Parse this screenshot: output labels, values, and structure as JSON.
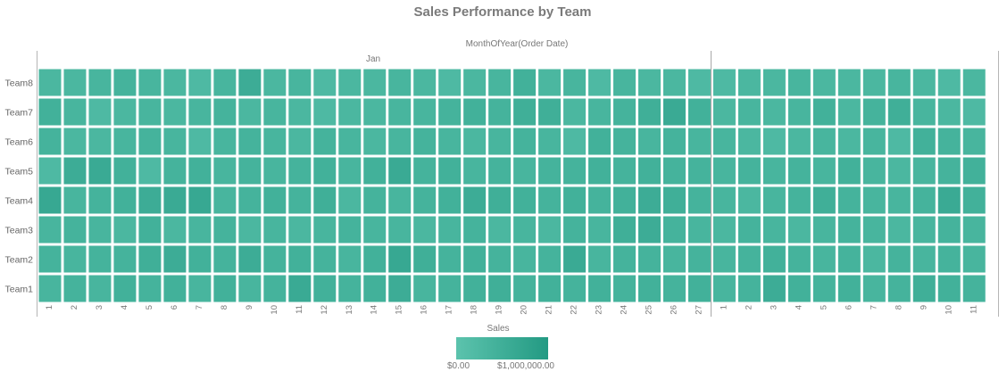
{
  "chart_data": {
    "type": "heatmap",
    "title": "Sales Performance by Team",
    "column_axis_label": "MonthOfYear(Order Date)",
    "month_header": "Jan",
    "columns": [
      {
        "month": "Jan",
        "day": "1"
      },
      {
        "month": "Jan",
        "day": "2"
      },
      {
        "month": "Jan",
        "day": "3"
      },
      {
        "month": "Jan",
        "day": "4"
      },
      {
        "month": "Jan",
        "day": "5"
      },
      {
        "month": "Jan",
        "day": "6"
      },
      {
        "month": "Jan",
        "day": "7"
      },
      {
        "month": "Jan",
        "day": "8"
      },
      {
        "month": "Jan",
        "day": "9"
      },
      {
        "month": "Jan",
        "day": "10"
      },
      {
        "month": "Jan",
        "day": "11"
      },
      {
        "month": "Jan",
        "day": "12"
      },
      {
        "month": "Jan",
        "day": "13"
      },
      {
        "month": "Jan",
        "day": "14"
      },
      {
        "month": "Jan",
        "day": "15"
      },
      {
        "month": "Jan",
        "day": "16"
      },
      {
        "month": "Jan",
        "day": "17"
      },
      {
        "month": "Jan",
        "day": "18"
      },
      {
        "month": "Jan",
        "day": "19"
      },
      {
        "month": "Jan",
        "day": "20"
      },
      {
        "month": "Jan",
        "day": "21"
      },
      {
        "month": "Jan",
        "day": "22"
      },
      {
        "month": "Jan",
        "day": "23"
      },
      {
        "month": "Jan",
        "day": "24"
      },
      {
        "month": "Jan",
        "day": "25"
      },
      {
        "month": "Jan",
        "day": "26"
      },
      {
        "month": "Jan",
        "day": "27"
      },
      {
        "month": "",
        "day": "1"
      },
      {
        "month": "",
        "day": "2"
      },
      {
        "month": "",
        "day": "3"
      },
      {
        "month": "",
        "day": "4"
      },
      {
        "month": "",
        "day": "5"
      },
      {
        "month": "",
        "day": "6"
      },
      {
        "month": "",
        "day": "7"
      },
      {
        "month": "",
        "day": "8"
      },
      {
        "month": "",
        "day": "9"
      },
      {
        "month": "",
        "day": "10"
      },
      {
        "month": "",
        "day": "11"
      }
    ],
    "rows": [
      "Team8",
      "Team7",
      "Team6",
      "Team5",
      "Team4",
      "Team3",
      "Team2",
      "Team1"
    ],
    "values": [
      [
        0.3,
        0.3,
        0.35,
        0.4,
        0.35,
        0.3,
        0.25,
        0.35,
        0.55,
        0.3,
        0.35,
        0.25,
        0.3,
        0.3,
        0.35,
        0.3,
        0.25,
        0.3,
        0.35,
        0.45,
        0.3,
        0.35,
        0.25,
        0.35,
        0.3,
        0.3,
        0.25,
        0.25,
        0.3,
        0.3,
        0.35,
        0.3,
        0.3,
        0.3,
        0.35,
        0.3,
        0.25,
        0.3
      ],
      [
        0.45,
        0.35,
        0.25,
        0.3,
        0.35,
        0.3,
        0.35,
        0.4,
        0.3,
        0.35,
        0.3,
        0.25,
        0.3,
        0.3,
        0.35,
        0.35,
        0.4,
        0.45,
        0.4,
        0.5,
        0.5,
        0.3,
        0.35,
        0.4,
        0.5,
        0.6,
        0.45,
        0.3,
        0.35,
        0.3,
        0.35,
        0.45,
        0.3,
        0.4,
        0.5,
        0.35,
        0.3,
        0.25
      ],
      [
        0.4,
        0.3,
        0.3,
        0.35,
        0.4,
        0.35,
        0.25,
        0.35,
        0.4,
        0.35,
        0.3,
        0.4,
        0.35,
        0.3,
        0.35,
        0.4,
        0.35,
        0.3,
        0.35,
        0.4,
        0.35,
        0.25,
        0.45,
        0.4,
        0.35,
        0.4,
        0.35,
        0.35,
        0.3,
        0.25,
        0.3,
        0.35,
        0.3,
        0.35,
        0.25,
        0.45,
        0.4,
        0.35
      ],
      [
        0.25,
        0.55,
        0.6,
        0.45,
        0.25,
        0.4,
        0.45,
        0.35,
        0.4,
        0.35,
        0.4,
        0.45,
        0.35,
        0.45,
        0.6,
        0.4,
        0.45,
        0.35,
        0.4,
        0.35,
        0.4,
        0.4,
        0.45,
        0.4,
        0.45,
        0.4,
        0.4,
        0.35,
        0.4,
        0.35,
        0.4,
        0.35,
        0.45,
        0.35,
        0.3,
        0.35,
        0.4,
        0.45
      ],
      [
        0.65,
        0.35,
        0.4,
        0.45,
        0.55,
        0.6,
        0.65,
        0.35,
        0.4,
        0.45,
        0.4,
        0.5,
        0.3,
        0.4,
        0.35,
        0.4,
        0.45,
        0.55,
        0.5,
        0.45,
        0.4,
        0.45,
        0.4,
        0.45,
        0.55,
        0.5,
        0.4,
        0.35,
        0.3,
        0.35,
        0.4,
        0.5,
        0.4,
        0.35,
        0.35,
        0.4,
        0.6,
        0.45
      ],
      [
        0.35,
        0.4,
        0.35,
        0.3,
        0.45,
        0.3,
        0.35,
        0.4,
        0.3,
        0.35,
        0.3,
        0.35,
        0.4,
        0.35,
        0.35,
        0.3,
        0.35,
        0.4,
        0.3,
        0.35,
        0.3,
        0.4,
        0.35,
        0.5,
        0.55,
        0.4,
        0.35,
        0.3,
        0.4,
        0.35,
        0.3,
        0.35,
        0.4,
        0.35,
        0.3,
        0.35,
        0.4,
        0.35
      ],
      [
        0.4,
        0.35,
        0.4,
        0.4,
        0.5,
        0.55,
        0.45,
        0.4,
        0.55,
        0.4,
        0.45,
        0.4,
        0.35,
        0.45,
        0.65,
        0.5,
        0.4,
        0.45,
        0.4,
        0.35,
        0.4,
        0.6,
        0.35,
        0.4,
        0.4,
        0.35,
        0.4,
        0.35,
        0.4,
        0.45,
        0.4,
        0.35,
        0.4,
        0.3,
        0.4,
        0.35,
        0.4,
        0.35
      ],
      [
        0.35,
        0.4,
        0.35,
        0.45,
        0.4,
        0.45,
        0.35,
        0.45,
        0.35,
        0.4,
        0.6,
        0.45,
        0.4,
        0.45,
        0.55,
        0.35,
        0.4,
        0.45,
        0.5,
        0.4,
        0.45,
        0.4,
        0.45,
        0.4,
        0.45,
        0.4,
        0.45,
        0.35,
        0.4,
        0.55,
        0.45,
        0.4,
        0.45,
        0.35,
        0.4,
        0.5,
        0.45,
        0.4
      ]
    ],
    "value_scale": "fraction of legend max",
    "legend": {
      "title": "Sales",
      "min_label": "$0.00",
      "max_label": "$1,000,000.00",
      "min_color": "#5cc3ad",
      "max_color": "#239a83",
      "placement": "bottom-center"
    },
    "grid": false
  }
}
